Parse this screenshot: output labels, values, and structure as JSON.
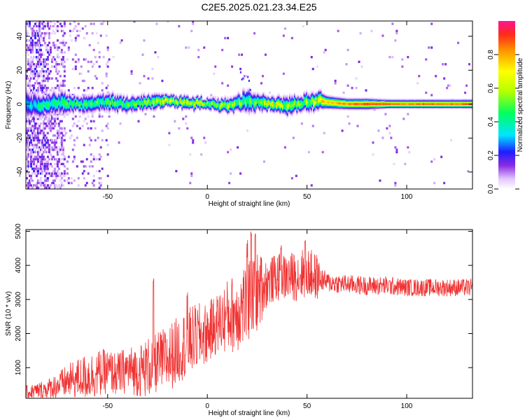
{
  "title": "C2E5.2025.021.23.34.E25",
  "chart_data": [
    {
      "type": "heatmap",
      "xlabel": "Height of straight line (km)",
      "ylabel": "Frequency (Hz)",
      "xlim": [
        -91,
        133
      ],
      "ylim": [
        -50,
        49
      ],
      "xticks": [
        -50,
        0,
        50,
        100
      ],
      "yticks": [
        -40,
        -20,
        0,
        20,
        40
      ],
      "colorbar": {
        "label": "Normalized spectral amplitude",
        "range": [
          0,
          1
        ],
        "ticks": [
          "0.0",
          "0.2",
          "0.4",
          "0.6",
          "0.8"
        ],
        "tick_values": [
          0,
          0.2,
          0.4,
          0.6,
          0.8
        ]
      },
      "ridge": {
        "x": [
          -91,
          -85,
          -80,
          -75,
          -70,
          -60,
          -50,
          -40,
          -30,
          -20,
          -10,
          0,
          10,
          20,
          25,
          30,
          40,
          50,
          56,
          60,
          70,
          80,
          90,
          100,
          110,
          120,
          133
        ],
        "center_hz": [
          0,
          -1,
          0,
          1,
          0,
          0,
          1,
          0,
          1,
          2,
          1,
          0,
          -1,
          2,
          1,
          0,
          -1,
          1,
          2,
          1,
          0,
          0,
          0,
          0,
          0,
          0,
          0
        ],
        "halfwidth_hz": [
          6,
          6,
          5,
          5,
          4,
          4,
          4,
          3.5,
          3.5,
          3,
          3,
          2.5,
          3,
          5,
          4,
          3,
          4,
          4,
          4,
          3,
          2.5,
          2.5,
          2,
          2,
          2,
          2,
          2
        ],
        "peak_amplitude": [
          0.45,
          0.5,
          0.5,
          0.5,
          0.55,
          0.55,
          0.6,
          0.6,
          0.7,
          0.8,
          0.8,
          0.75,
          0.7,
          0.6,
          0.65,
          0.85,
          0.7,
          0.7,
          0.85,
          0.8,
          0.9,
          0.95,
          0.95,
          0.9,
          0.95,
          0.9,
          0.95
        ]
      },
      "noise_region_x": [
        -91,
        -50
      ]
    },
    {
      "type": "line",
      "xlabel": "Height of straight line (km)",
      "ylabel": "SNR (10 * v/v)",
      "xlim": [
        -91,
        133
      ],
      "ylim": [
        100,
        5050
      ],
      "xticks": [
        -50,
        0,
        50,
        100
      ],
      "yticks": [
        1000,
        2000,
        3000,
        4000,
        5000
      ],
      "color": "#f03232",
      "series": [
        {
          "x": [
            -91,
            -85,
            -80,
            -75,
            -70,
            -65,
            -60,
            -55,
            -50,
            -45,
            -40,
            -35,
            -30,
            -25,
            -20,
            -15,
            -10,
            -5,
            0,
            5,
            10,
            15,
            20,
            25,
            30,
            35,
            40,
            45,
            50,
            55,
            57,
            60,
            70,
            80,
            90,
            100,
            110,
            120,
            133
          ],
          "mean": [
            250,
            320,
            380,
            480,
            600,
            680,
            750,
            820,
            900,
            800,
            950,
            900,
            1000,
            1150,
            1250,
            1500,
            1750,
            1900,
            2000,
            2300,
            2500,
            2650,
            2950,
            3200,
            3500,
            3650,
            3650,
            3700,
            3800,
            3650,
            3600,
            3500,
            3450,
            3400,
            3400,
            3350,
            3350,
            3350,
            3350
          ],
          "spread": [
            220,
            250,
            300,
            400,
            500,
            600,
            700,
            700,
            650,
            650,
            700,
            750,
            900,
            900,
            1000,
            1000,
            1000,
            1000,
            900,
            900,
            1100,
            1200,
            1300,
            1200,
            700,
            700,
            700,
            750,
            750,
            700,
            350,
            300,
            280,
            280,
            280,
            260,
            260,
            260,
            260
          ],
          "spikes": [
            [
              -27,
              3650
            ],
            [
              -10,
              3250
            ],
            [
              20,
              4750
            ],
            [
              22,
              5000
            ],
            [
              24,
              5000
            ],
            [
              27,
              4300
            ],
            [
              37,
              4600
            ],
            [
              49,
              4800
            ],
            [
              54,
              4400
            ]
          ]
        }
      ]
    }
  ]
}
